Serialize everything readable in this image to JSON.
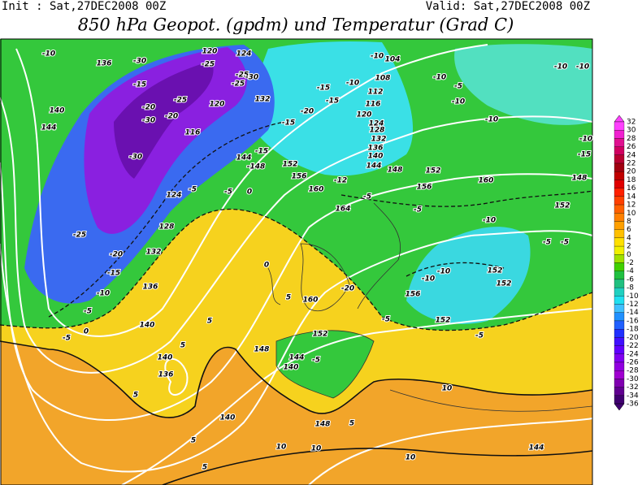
{
  "header": {
    "init": "Init : Sat,27DEC2008 00Z",
    "valid": "Valid: Sat,27DEC2008 00Z",
    "title": "850 hPa Geopot. (gpdm) und Temperatur (Grad C)"
  },
  "colorbar": {
    "labels": [
      32,
      30,
      28,
      26,
      24,
      22,
      20,
      18,
      16,
      14,
      12,
      10,
      8,
      6,
      4,
      2,
      0,
      -2,
      -4,
      -6,
      -8,
      -10,
      -12,
      -14,
      -16,
      -18,
      -20,
      -22,
      -24,
      -26,
      -28,
      -30,
      -32,
      -34,
      -36
    ]
  },
  "map_labels": [
    "-10",
    "136",
    "-30",
    "120",
    "-25",
    "-25",
    "-25",
    "-30",
    "124",
    "-15",
    "-25",
    "-20",
    "-20",
    "-30",
    "120",
    "132",
    "116",
    "140",
    "144",
    "-30",
    "-15",
    "144",
    "-148",
    "-20",
    "-15",
    "152",
    "156",
    "124",
    "-5",
    "-5",
    "0",
    "160",
    "-15",
    "-10",
    "-15",
    "-10",
    "104",
    "108",
    "112",
    "116",
    "120",
    "124",
    "128",
    "132",
    "136",
    "140",
    "144",
    "148",
    "-12",
    "-5",
    "156",
    "152",
    "160",
    "-5",
    "-10",
    "-5",
    "-10",
    "-10",
    "-10",
    "-10",
    "-10",
    "-15",
    "148",
    "152",
    "-10",
    "-5",
    "-5",
    "164",
    "0",
    "128",
    "-25",
    "-20",
    "132",
    "-15",
    "136",
    "-10",
    "-5",
    "0",
    "140",
    "-5",
    "5",
    "5",
    "160",
    "-20",
    "-10",
    "-10",
    "152",
    "152",
    "156",
    "152",
    "-5",
    "-5",
    "148",
    "152",
    "144",
    "-5",
    "140",
    "140",
    "136",
    "5",
    "140",
    "5",
    "5",
    "148",
    "10",
    "10",
    "10",
    "144",
    "5",
    "5",
    "10"
  ]
}
